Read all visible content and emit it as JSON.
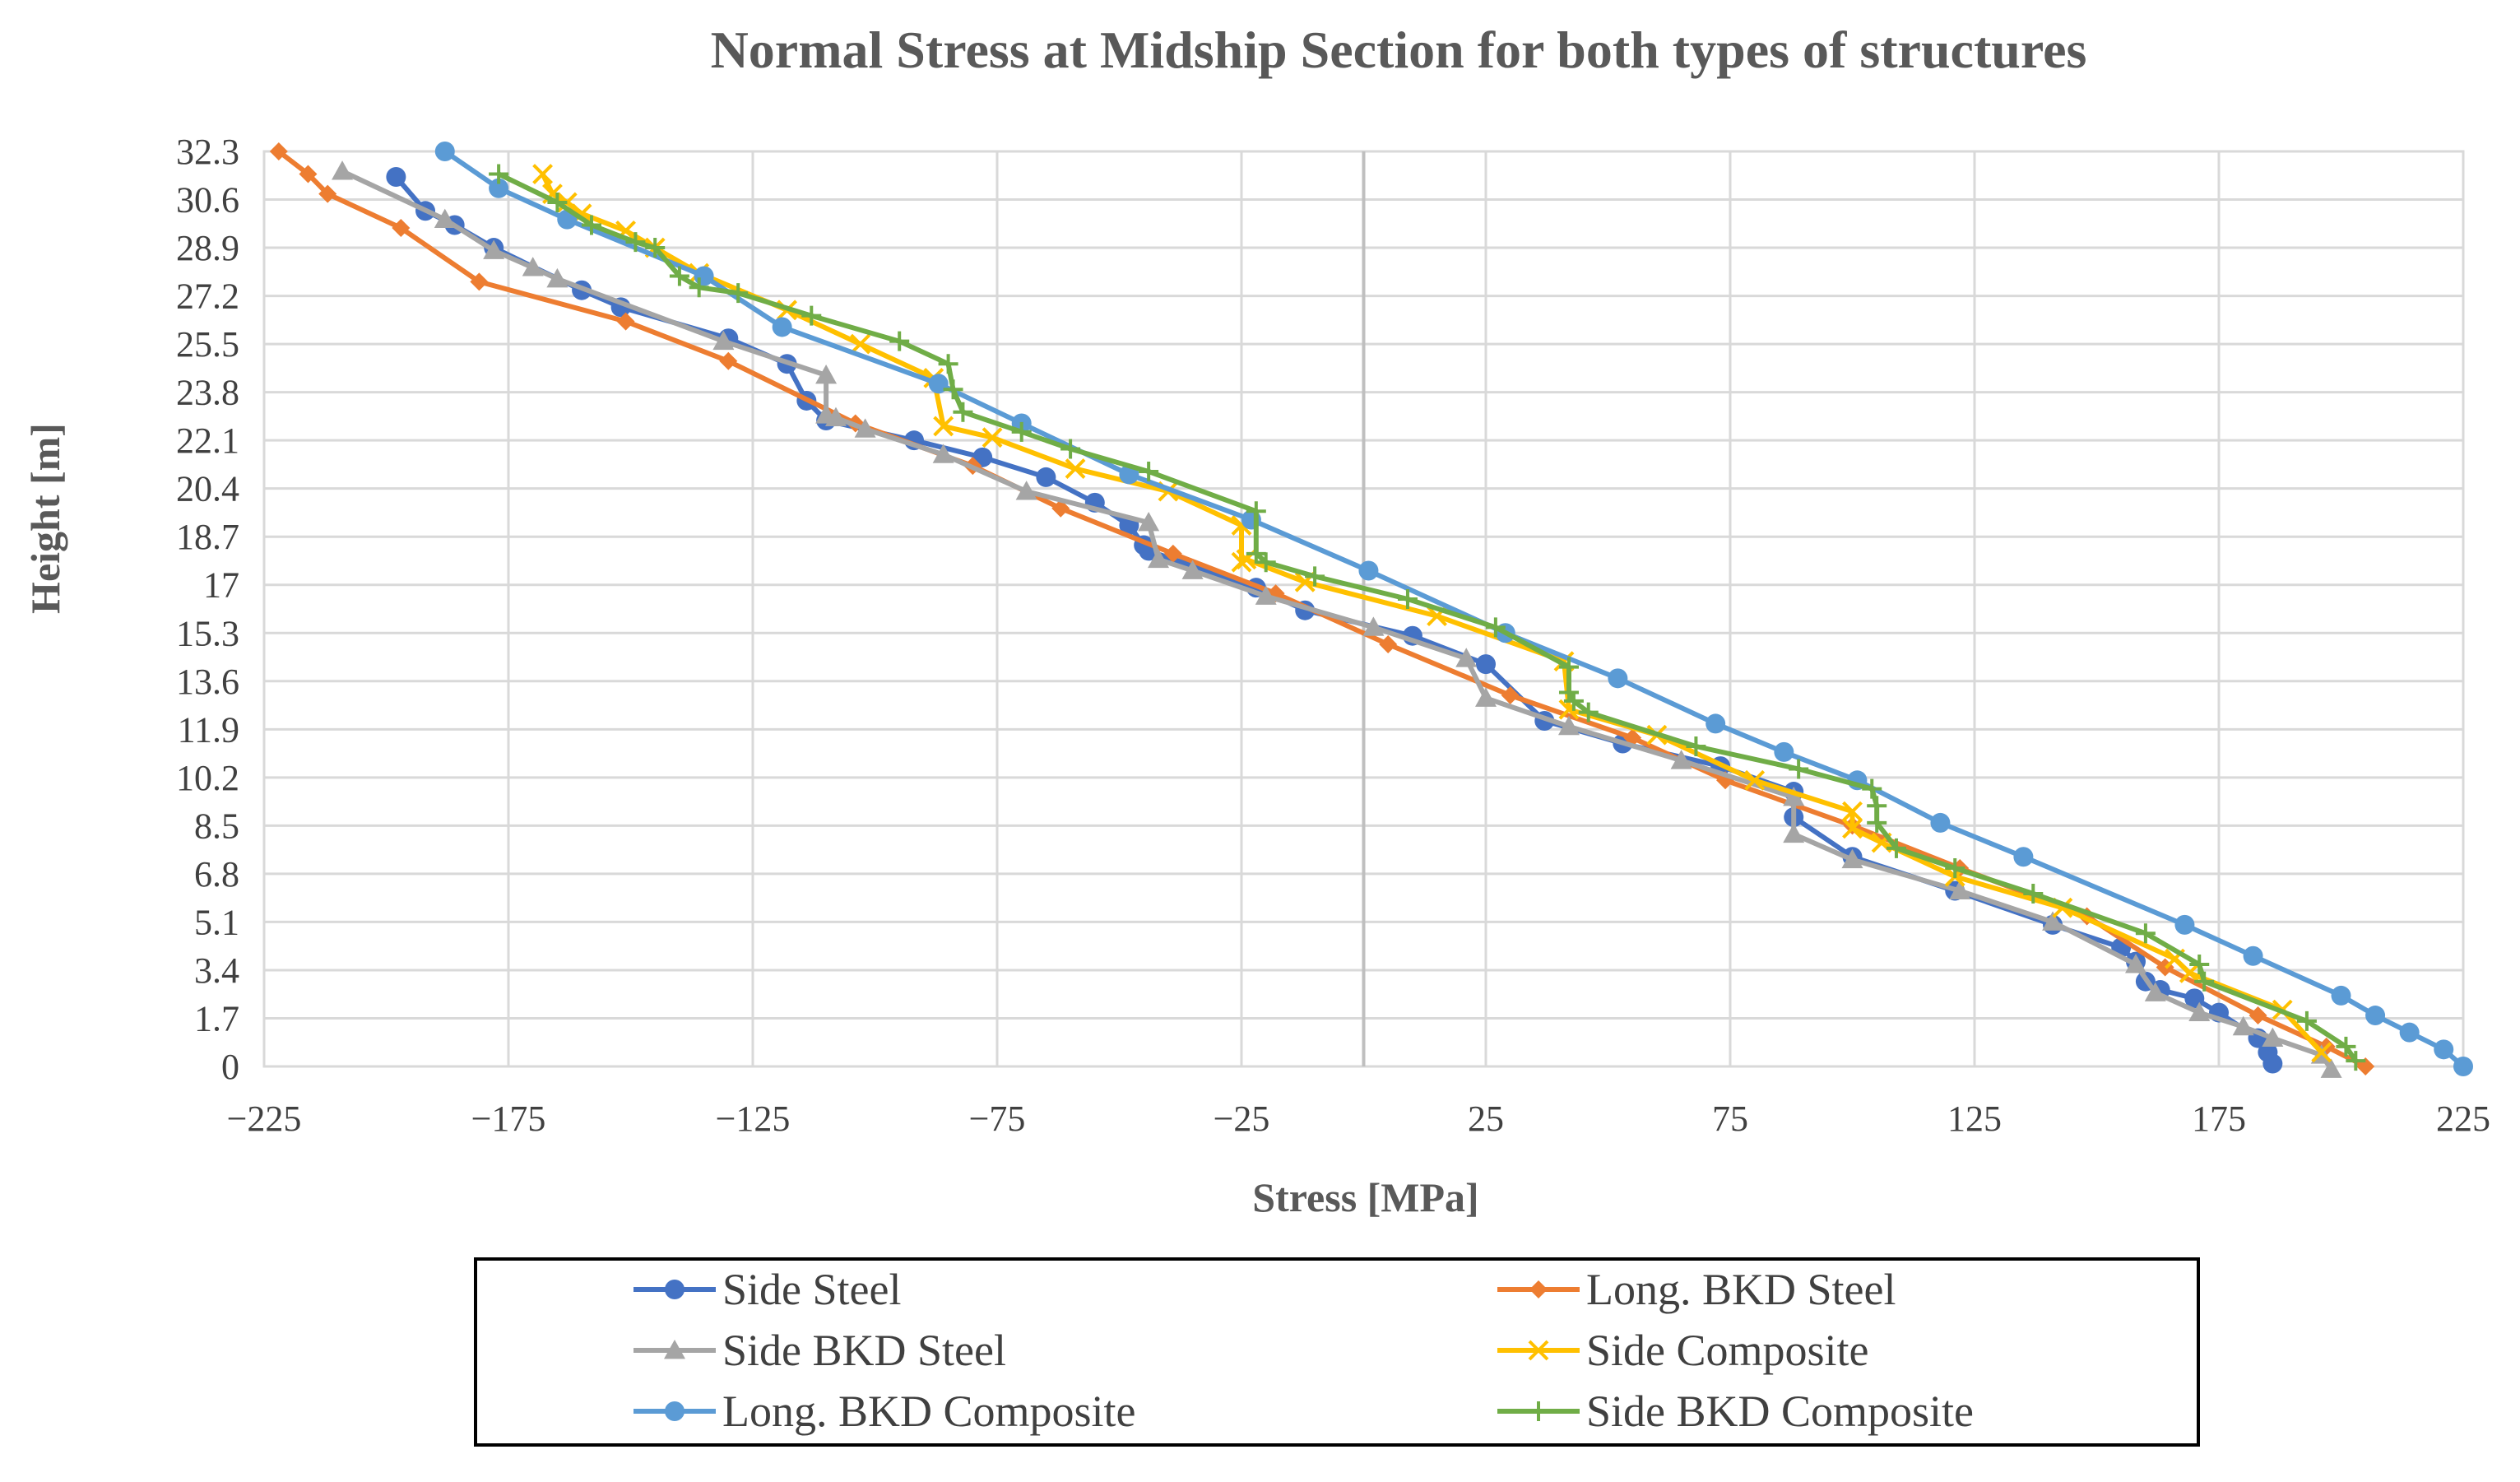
{
  "chart_data": {
    "type": "line",
    "title": "Normal Stress at Midship Section for both types of structures",
    "xlabel": "Stress [MPa]",
    "ylabel": "Height [m]",
    "xlim": [
      -225,
      225
    ],
    "ylim": [
      0,
      32.3
    ],
    "x_ticks": [
      -225,
      -175,
      -125,
      -75,
      -25,
      25,
      75,
      125,
      175,
      225
    ],
    "x_tick_labels": [
      "−225",
      "−175",
      "−125",
      "−75",
      "−25",
      "25",
      "75",
      "125",
      "175",
      "225"
    ],
    "y_ticks": [
      0,
      1.7,
      3.4,
      5.1,
      6.8,
      8.5,
      10.2,
      11.9,
      13.6,
      15.3,
      17,
      18.7,
      20.4,
      22.1,
      23.8,
      25.5,
      27.2,
      28.9,
      30.6,
      32.3
    ],
    "y_tick_labels": [
      "0",
      "1.7",
      "3.4",
      "5.1",
      "6.8",
      "8.5",
      "10.2",
      "11.9",
      "13.6",
      "15.3",
      "17",
      "18.7",
      "20.4",
      "22.1",
      "23.8",
      "25.5",
      "27.2",
      "28.9",
      "30.6",
      "32.3"
    ],
    "grid": true,
    "legend_position": "bottom",
    "series": [
      {
        "name": "Side Steel",
        "color": "#4472C4",
        "marker": "circle",
        "x": [
          -198,
          -192,
          -186,
          -178,
          -160,
          -152,
          -130,
          -118,
          -114,
          -110,
          -92,
          -78,
          -65,
          -55,
          -48,
          -45,
          -44,
          -22,
          -12,
          10,
          25,
          37,
          53,
          73,
          88,
          88,
          100,
          121,
          141,
          155,
          158,
          160,
          163,
          170,
          175,
          183,
          185,
          186
        ],
        "y": [
          31.4,
          30.2,
          29.7,
          28.9,
          27.4,
          26.8,
          25.7,
          24.8,
          23.5,
          22.8,
          22.1,
          21.5,
          20.8,
          19.9,
          19.1,
          18.4,
          18.2,
          16.9,
          16.1,
          15.2,
          14.2,
          12.2,
          11.4,
          10.6,
          9.7,
          8.8,
          7.4,
          6.2,
          5.0,
          4.2,
          3.7,
          3.0,
          2.7,
          2.4,
          1.9,
          1.0,
          0.5,
          0.1
        ]
      },
      {
        "name": "Long. BKD Steel",
        "color": "#ED7D31",
        "marker": "diamond",
        "x": [
          -222,
          -216,
          -212,
          -197,
          -181,
          -151,
          -130,
          -104,
          -80,
          -62,
          -39,
          -18,
          5,
          30,
          55,
          74,
          100,
          122,
          148,
          164,
          183,
          197,
          205
        ],
        "y": [
          32.3,
          31.5,
          30.8,
          29.6,
          27.7,
          26.3,
          24.9,
          22.7,
          21.2,
          19.7,
          18.1,
          16.7,
          14.9,
          13.1,
          11.6,
          10.1,
          8.5,
          7.0,
          5.3,
          3.5,
          1.8,
          0.7,
          0.0
        ]
      },
      {
        "name": "Side BKD Steel",
        "color": "#A5A5A5",
        "marker": "triangle",
        "x": [
          -209,
          -188,
          -178,
          -170,
          -165,
          -131,
          -110,
          -110,
          -108,
          -102,
          -86,
          -69,
          -44,
          -42,
          -35,
          -20,
          2,
          21,
          25,
          42,
          65,
          88,
          88,
          100,
          122,
          141,
          158,
          162,
          171,
          180,
          186,
          196,
          198
        ],
        "y": [
          31.6,
          29.9,
          28.8,
          28.2,
          27.8,
          25.6,
          24.4,
          23.0,
          22.9,
          22.5,
          21.6,
          20.3,
          19.2,
          17.9,
          17.5,
          16.6,
          15.5,
          14.4,
          13.0,
          12.0,
          10.8,
          9.5,
          8.2,
          7.3,
          6.2,
          5.1,
          3.6,
          2.6,
          1.9,
          1.4,
          1.0,
          0.4,
          -0.1
        ]
      },
      {
        "name": "Side Composite",
        "color": "#FFC000",
        "marker": "x",
        "x": [
          -168,
          -166,
          -163,
          -160,
          -151,
          -145,
          -136,
          -118,
          -103,
          -88,
          -86,
          -76,
          -59,
          -40,
          -25,
          -25,
          -24,
          -12,
          15,
          41,
          42,
          60,
          80,
          100,
          100,
          106,
          121,
          143,
          166,
          169,
          188,
          196
        ],
        "y": [
          31.5,
          30.8,
          30.5,
          30.1,
          29.5,
          28.9,
          28.0,
          26.7,
          25.5,
          24.3,
          22.6,
          22.2,
          21.1,
          20.3,
          19.1,
          17.8,
          17.9,
          17.1,
          15.9,
          14.3,
          12.6,
          11.7,
          10.1,
          9.0,
          8.4,
          7.9,
          6.7,
          5.6,
          3.8,
          3.3,
          2.0,
          0.5
        ]
      },
      {
        "name": "Long. BKD Composite",
        "color": "#5B9BD5",
        "marker": "circle",
        "x": [
          -188,
          -177,
          -163,
          -135,
          -119,
          -87,
          -70,
          -48,
          -23,
          1,
          29,
          52,
          72,
          86,
          101,
          118,
          135,
          168,
          182,
          200,
          207,
          214,
          221,
          225
        ],
        "y": [
          32.3,
          31.0,
          29.9,
          27.9,
          26.1,
          24.1,
          22.7,
          20.9,
          19.3,
          17.5,
          15.3,
          13.7,
          12.1,
          11.1,
          10.1,
          8.6,
          7.4,
          5.0,
          3.9,
          2.5,
          1.8,
          1.2,
          0.6,
          0.0
        ]
      },
      {
        "name": "Side BKD Composite",
        "color": "#70AD47",
        "marker": "plus",
        "x": [
          -177,
          -165,
          -158,
          -149,
          -145,
          -140,
          -136,
          -128,
          -113,
          -95,
          -85,
          -84,
          -82,
          -70,
          -60,
          -44,
          -22,
          -22,
          -20,
          -10,
          9,
          27,
          42,
          42,
          43,
          46,
          68,
          89,
          104,
          105,
          105,
          109,
          121,
          137,
          160,
          171,
          172,
          193,
          201,
          203
        ],
        "y": [
          31.5,
          30.5,
          29.7,
          29.1,
          28.9,
          27.9,
          27.5,
          27.3,
          26.5,
          25.6,
          24.8,
          23.9,
          23.1,
          22.4,
          21.8,
          21.0,
          19.6,
          18.1,
          17.8,
          17.3,
          16.5,
          15.5,
          14.1,
          13.2,
          12.9,
          12.5,
          11.3,
          10.5,
          9.8,
          9.2,
          8.6,
          7.7,
          7.0,
          6.1,
          4.7,
          3.6,
          3.0,
          1.6,
          0.7,
          0.2
        ]
      }
    ]
  }
}
